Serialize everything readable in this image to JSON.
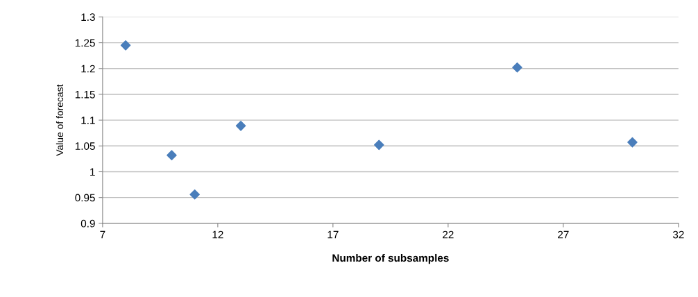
{
  "chart_data": {
    "type": "scatter",
    "xlabel": "Number of subsamples",
    "ylabel": "Value of forecast",
    "x": [
      8,
      10,
      11,
      13,
      19,
      25,
      30
    ],
    "series": [
      {
        "color": "#4a7ebb",
        "values": [
          1.245,
          1.032,
          0.956,
          1.089,
          1.052,
          1.202,
          1.057
        ]
      }
    ],
    "xlim": [
      7,
      32
    ],
    "xticks": [
      7,
      12,
      17,
      22,
      27,
      32
    ],
    "ylim": [
      0.9,
      1.3
    ],
    "yticks": [
      0.9,
      0.95,
      1,
      1.05,
      1.1,
      1.15,
      1.2,
      1.25,
      1.3
    ],
    "grid": "y",
    "marker": "diamond",
    "legend": false
  }
}
